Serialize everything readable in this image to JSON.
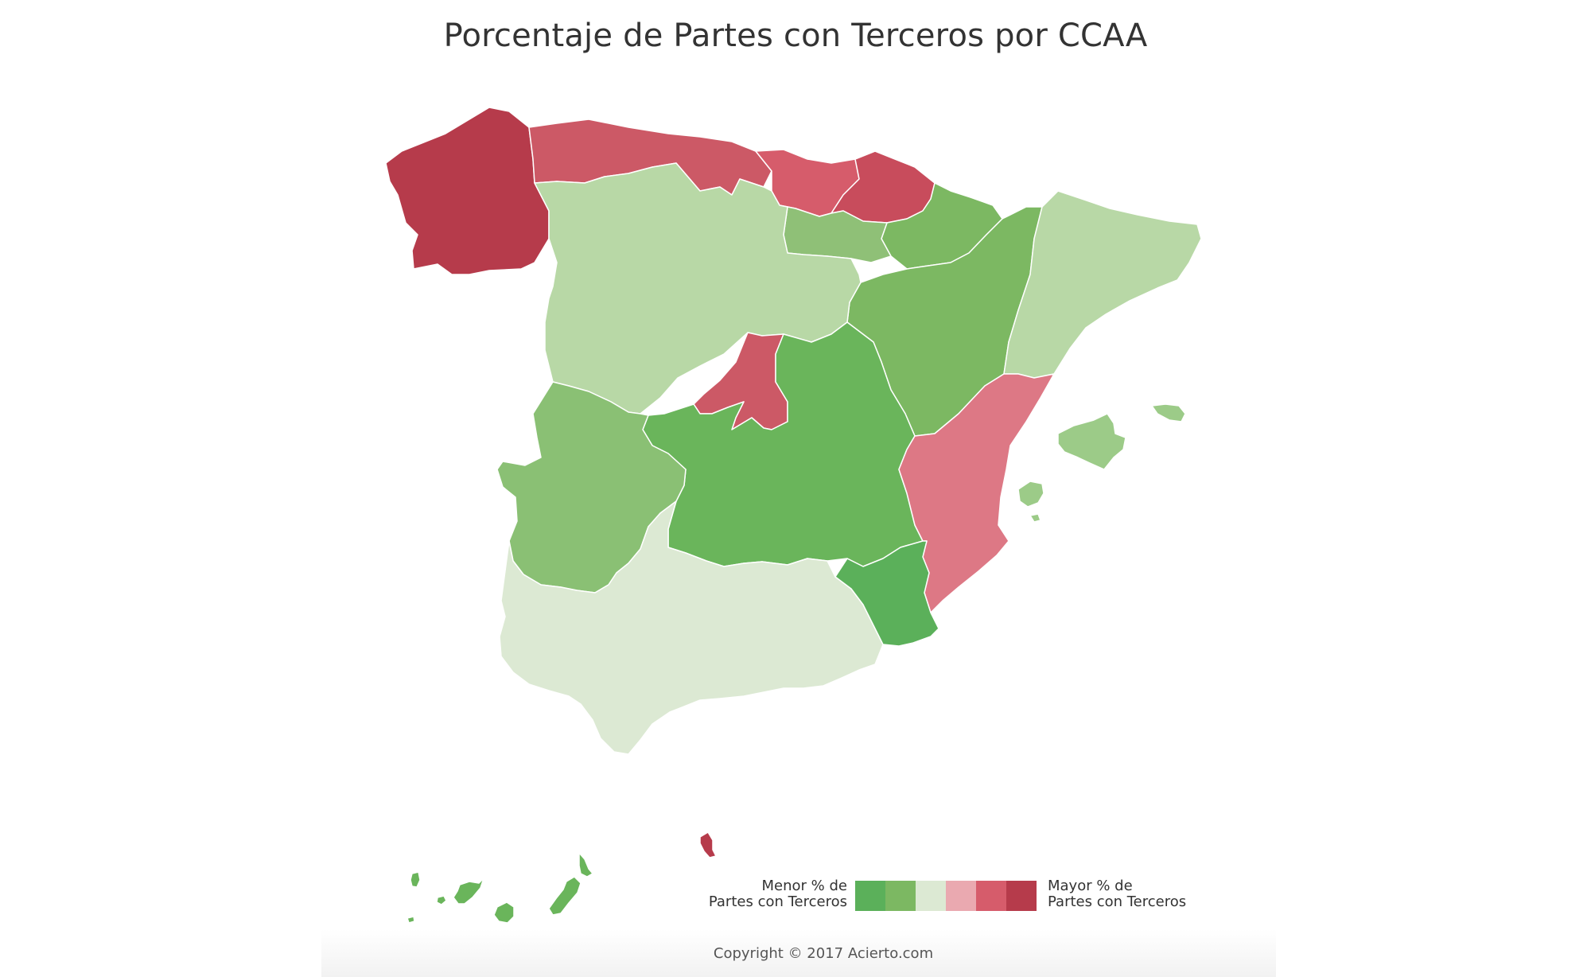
{
  "title": "Porcentaje de Partes con Terceros por CCAA",
  "legend": {
    "low_label_line1": "Menor % de",
    "low_label_line2": "Partes con Terceros",
    "high_label_line1": "Mayor % de",
    "high_label_line2": "Partes con Terceros",
    "scale_colors": [
      "#5bb05a",
      "#7cb862",
      "#dce9d3",
      "#eaa9b0",
      "#d65c6b",
      "#b63b4b"
    ]
  },
  "regions": [
    {
      "name": "Galicia",
      "color": "#b63b4b"
    },
    {
      "name": "Asturias",
      "color": "#cc5966"
    },
    {
      "name": "Cantabria",
      "color": "#d65c6b"
    },
    {
      "name": "País Vasco",
      "color": "#c84c5c"
    },
    {
      "name": "Navarra",
      "color": "#7cb862"
    },
    {
      "name": "La Rioja",
      "color": "#8fc077"
    },
    {
      "name": "Aragón",
      "color": "#7cb862"
    },
    {
      "name": "Cataluña",
      "color": "#b8d8a6"
    },
    {
      "name": "Castilla y León",
      "color": "#b8d8a6"
    },
    {
      "name": "Madrid",
      "color": "#cc5966"
    },
    {
      "name": "Castilla-La Mancha",
      "color": "#6ab55b"
    },
    {
      "name": "Comunidad Valenciana",
      "color": "#dd7885"
    },
    {
      "name": "Extremadura",
      "color": "#8ac074"
    },
    {
      "name": "Andalucía",
      "color": "#dce9d3"
    },
    {
      "name": "Murcia",
      "color": "#5bb05a"
    },
    {
      "name": "Islas Baleares",
      "color": "#9ccb88"
    },
    {
      "name": "Canarias",
      "color": "#6ab55b"
    },
    {
      "name": "Ceuta",
      "color": "#b63b4b"
    }
  ],
  "copyright": "Copyright © 2017 Acierto.com"
}
